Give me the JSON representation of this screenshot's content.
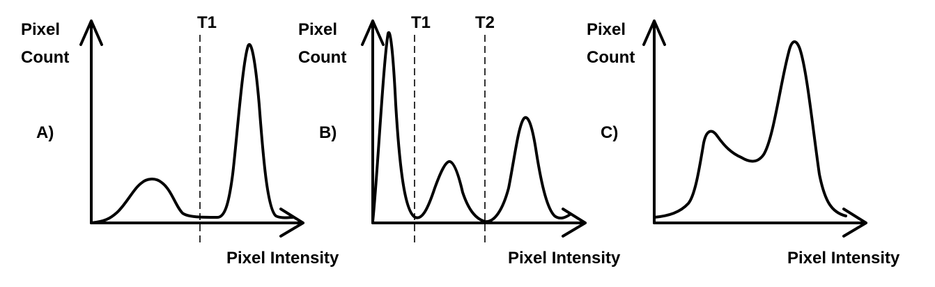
{
  "panels": [
    {
      "id": "A",
      "panel_label": "A)",
      "y_label": [
        "Pixel",
        "Count"
      ],
      "x_label": "Pixel Intensity",
      "thresholds": [
        "T1"
      ]
    },
    {
      "id": "B",
      "panel_label": "B)",
      "y_label": [
        "Pixel",
        "Count"
      ],
      "x_label": "Pixel Intensity",
      "thresholds": [
        "T1",
        "T2"
      ]
    },
    {
      "id": "C",
      "panel_label": "C)",
      "y_label": [
        "Pixel",
        "Count"
      ],
      "x_label": "Pixel Intensity",
      "thresholds": []
    }
  ]
}
